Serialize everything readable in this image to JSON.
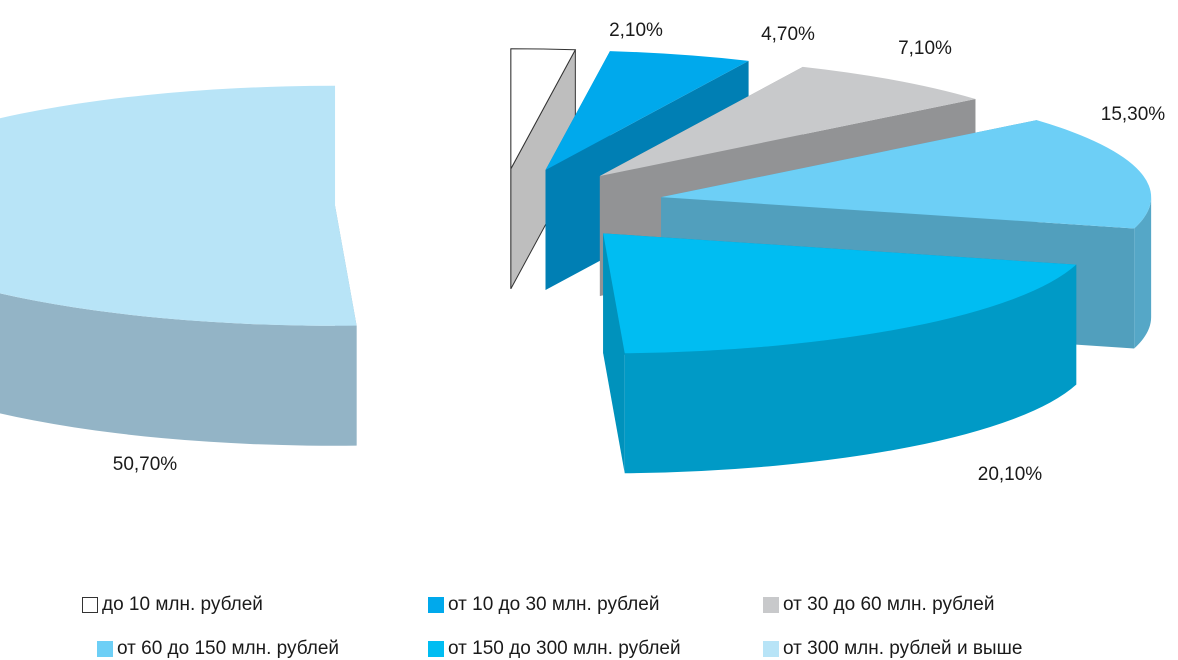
{
  "chart_data": {
    "type": "pie",
    "variant": "3d-exploded",
    "title": "",
    "legend_position": "bottom",
    "slices": [
      {
        "name": "до 10 млн. рублей",
        "value": 2.1,
        "label": "2,10%",
        "color": "#ffffff",
        "side_color": "#c8c8c8"
      },
      {
        "name": "от 10 до 30 млн. рублей",
        "value": 4.7,
        "label": "4,70%",
        "color": "#00a9ec",
        "side_color": "#0086bd"
      },
      {
        "name": "от 30 до 60 млн. рублей",
        "value": 7.1,
        "label": "7,10%",
        "color": "#c8c9cb",
        "side_color": "#9a9b9d"
      },
      {
        "name": "от 60 до 150 млн. рублей",
        "value": 15.3,
        "label": "15,30%",
        "color": "#6dcff6",
        "side_color": "#55a7c7"
      },
      {
        "name": "от 150 до 300 млн. рублей",
        "value": 20.1,
        "label": "20,10%",
        "color": "#00bdf2",
        "side_color": "#009ac6"
      },
      {
        "name": "от 300 млн. рублей и выше",
        "value": 50.7,
        "label": "50,70%",
        "color": "#b8e4f7",
        "side_color": "#93b4c6"
      }
    ]
  }
}
